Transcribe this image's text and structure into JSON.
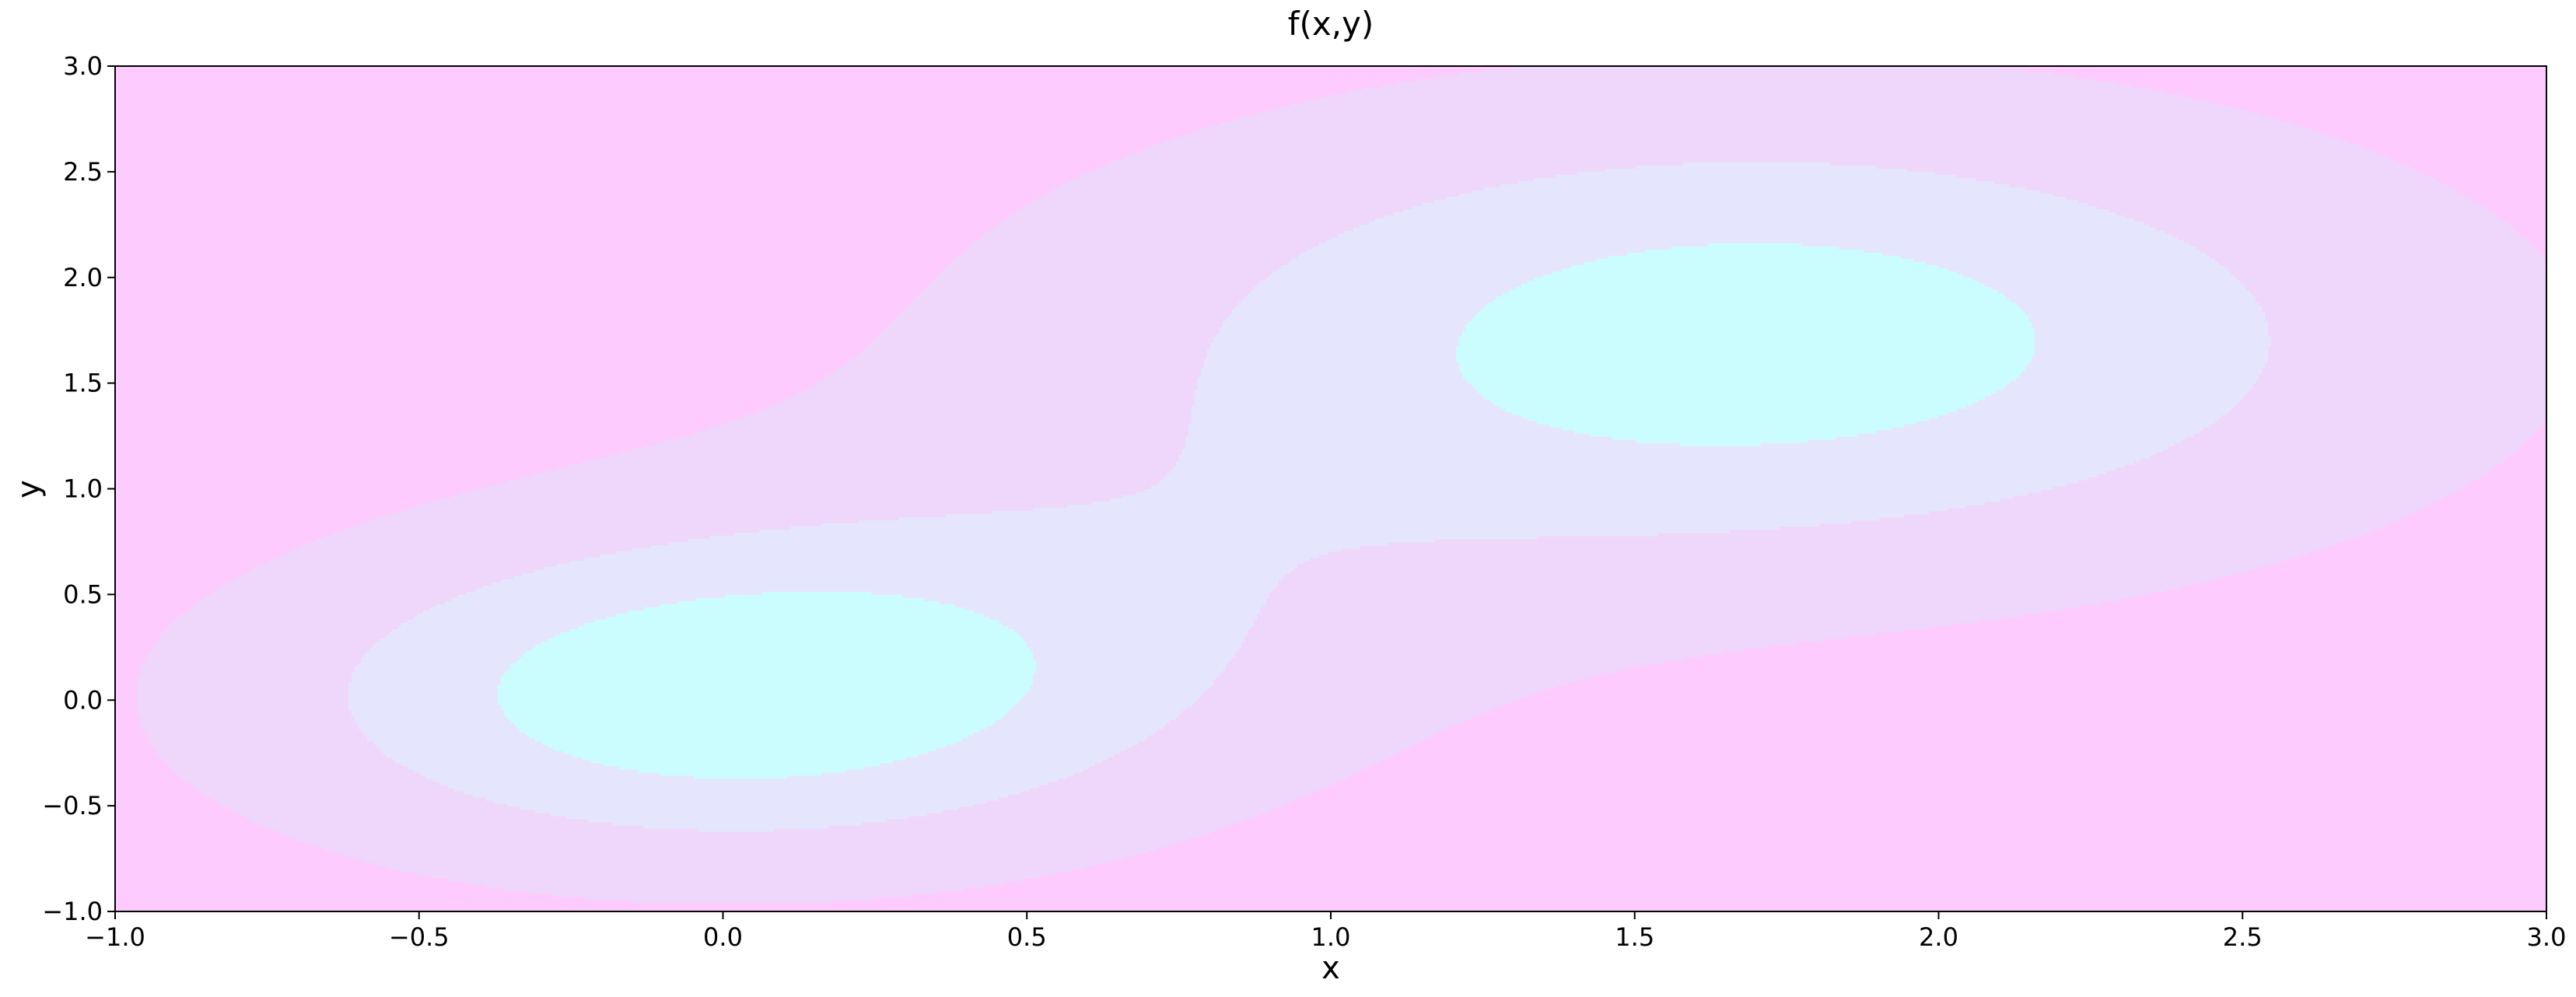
{
  "chart_data": {
    "type": "contour",
    "title": "f(x,y)",
    "xlabel": "x",
    "ylabel": "y",
    "xlim": [
      -1.0,
      3.0
    ],
    "ylim": [
      -1.0,
      3.0
    ],
    "xticks": [
      -1.0,
      -0.5,
      0.0,
      0.5,
      1.0,
      1.5,
      2.0,
      2.5,
      3.0
    ],
    "yticks": [
      -1.0,
      -0.5,
      0.0,
      0.5,
      1.0,
      1.5,
      2.0,
      2.5,
      3.0
    ],
    "xtick_labels": [
      "−1.0",
      "−0.5",
      "0.0",
      "0.5",
      "1.0",
      "1.5",
      "2.0",
      "2.5",
      "3.0"
    ],
    "ytick_labels": [
      "−1.0",
      "−0.5",
      "0.0",
      "0.5",
      "1.0",
      "1.5",
      "2.0",
      "2.5",
      "3.0"
    ],
    "grid": false,
    "levels": [
      {
        "level": 0,
        "color": "#fdcbfd"
      },
      {
        "level": 1,
        "color": "#efd7fb"
      },
      {
        "level": 2,
        "color": "#e5e6fe"
      },
      {
        "level": 3,
        "color": "#ccfdfe"
      }
    ],
    "peaks": [
      {
        "x": 0.0,
        "y": 0.0
      },
      {
        "x": 1.7,
        "y": 1.7
      }
    ]
  }
}
